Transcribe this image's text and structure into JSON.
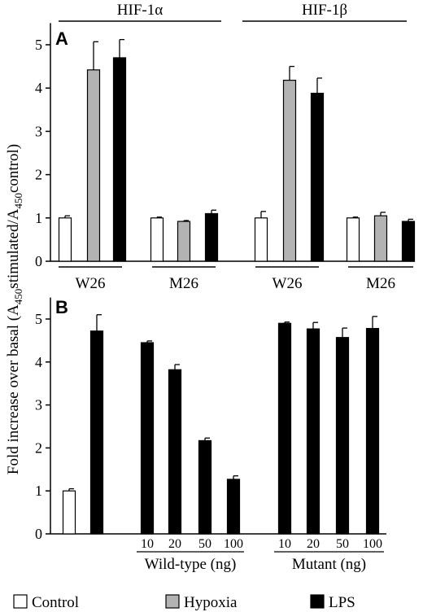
{
  "y_axis_label_parts": {
    "pre": "Fold increase over basal (A",
    "sub1": "450",
    "mid": "stimulated/A",
    "sub2": "450",
    "post": "control)"
  },
  "legend": [
    {
      "label": "Control",
      "color": "#ffffff"
    },
    {
      "label": "Hypoxia",
      "color": "#b3b3b3"
    },
    {
      "label": "LPS",
      "color": "#000000"
    }
  ],
  "chart_data": [
    {
      "type": "bar",
      "panel_label": "A",
      "top_groups": [
        "HIF-1α",
        "HIF-1β"
      ],
      "bottom_groups": [
        "W26",
        "M26",
        "W26",
        "M26"
      ],
      "ylim": [
        0,
        5.5
      ],
      "yticks": [
        0,
        1,
        2,
        3,
        4,
        5
      ],
      "series": [
        {
          "name": "Control",
          "color": "#ffffff",
          "values": [
            1.0,
            1.0,
            1.0,
            1.0
          ],
          "errors": [
            0.05,
            0.02,
            0.15,
            0.02
          ]
        },
        {
          "name": "Hypoxia",
          "color": "#b3b3b3",
          "values": [
            4.42,
            0.92,
            4.18,
            1.05
          ],
          "errors": [
            0.65,
            0.02,
            0.32,
            0.08
          ]
        },
        {
          "name": "LPS",
          "color": "#000000",
          "values": [
            4.7,
            1.1,
            3.88,
            0.92
          ],
          "errors": [
            0.42,
            0.08,
            0.35,
            0.05
          ]
        }
      ]
    },
    {
      "type": "bar",
      "panel_label": "B",
      "ylim": [
        0,
        5.5
      ],
      "yticks": [
        0,
        1,
        2,
        3,
        4,
        5
      ],
      "bars": [
        {
          "series": "Control",
          "value": 1.0,
          "error": 0.05,
          "tick": ""
        },
        {
          "series": "LPS",
          "value": 4.72,
          "error": 0.38,
          "tick": ""
        },
        {
          "series": "LPS",
          "value": 4.45,
          "error": 0.04,
          "tick": "10"
        },
        {
          "series": "LPS",
          "value": 3.82,
          "error": 0.12,
          "tick": "20"
        },
        {
          "series": "LPS",
          "value": 2.17,
          "error": 0.06,
          "tick": "50"
        },
        {
          "series": "LPS",
          "value": 1.27,
          "error": 0.08,
          "tick": "100"
        },
        {
          "series": "LPS",
          "value": 4.9,
          "error": 0.03,
          "tick": "10"
        },
        {
          "series": "LPS",
          "value": 4.77,
          "error": 0.15,
          "tick": "20"
        },
        {
          "series": "LPS",
          "value": 4.57,
          "error": 0.22,
          "tick": "50"
        },
        {
          "series": "LPS",
          "value": 4.78,
          "error": 0.28,
          "tick": "100"
        }
      ],
      "group_labels": [
        "Wild-type (ng)",
        "Mutant (ng)"
      ]
    }
  ]
}
